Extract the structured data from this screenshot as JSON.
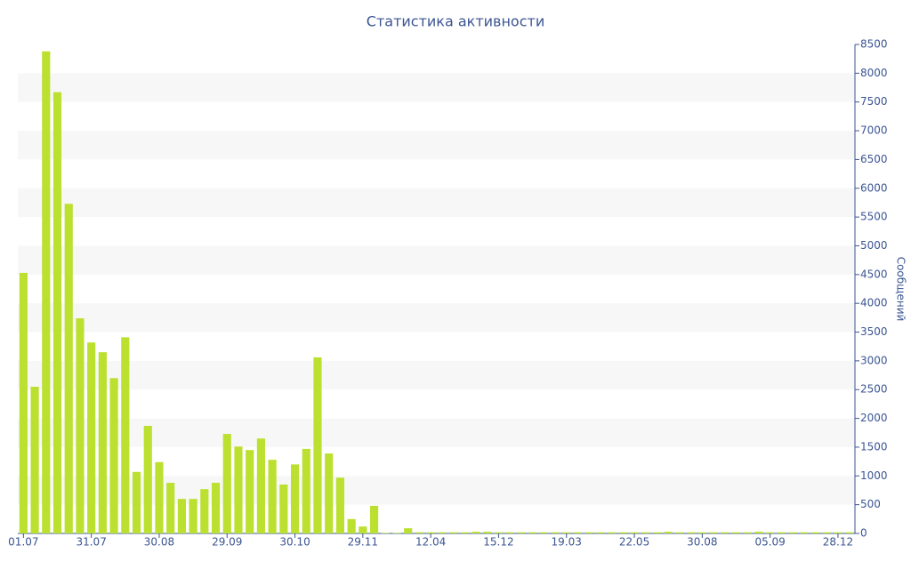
{
  "chart_data": {
    "type": "bar",
    "title": "Статистика активности",
    "y_label": "Сообщений",
    "categories": [
      "01.07",
      null,
      null,
      null,
      null,
      null,
      "31.07",
      null,
      null,
      null,
      null,
      null,
      "30.08",
      null,
      null,
      null,
      null,
      null,
      "29.09",
      null,
      null,
      null,
      null,
      null,
      "30.10",
      null,
      null,
      null,
      null,
      null,
      "29.11",
      null,
      null,
      null,
      null,
      null,
      "12.04",
      null,
      null,
      null,
      null,
      null,
      "15.12",
      null,
      null,
      null,
      null,
      null,
      "19.03",
      null,
      null,
      null,
      null,
      null,
      "22.05",
      null,
      null,
      null,
      null,
      null,
      "30.08",
      null,
      null,
      null,
      null,
      null,
      "05.09",
      null,
      null,
      null,
      null,
      null,
      "28.12",
      null
    ],
    "values": [
      4530,
      2550,
      8380,
      7670,
      5730,
      3740,
      3320,
      3150,
      2700,
      3410,
      1070,
      1870,
      1240,
      880,
      600,
      600,
      770,
      880,
      1730,
      1510,
      1450,
      1650,
      1280,
      850,
      1200,
      1470,
      3060,
      1390,
      970,
      250,
      120,
      480,
      10,
      10,
      90,
      20,
      20,
      20,
      20,
      20,
      30,
      30,
      20,
      20,
      20,
      20,
      20,
      20,
      20,
      20,
      20,
      20,
      20,
      20,
      20,
      20,
      20,
      30,
      20,
      20,
      20,
      20,
      20,
      20,
      20,
      30,
      20,
      20,
      20,
      20,
      20,
      20,
      20,
      20
    ],
    "color": "#bbe030",
    "ylim": [
      0,
      8500
    ],
    "yticks": [
      0,
      500,
      1000,
      1500,
      2000,
      2500,
      3000,
      3500,
      4000,
      4500,
      5000,
      5500,
      6000,
      6500,
      7000,
      7500,
      8000,
      8500
    ],
    "y_axis_side": "right",
    "grid": true
  }
}
